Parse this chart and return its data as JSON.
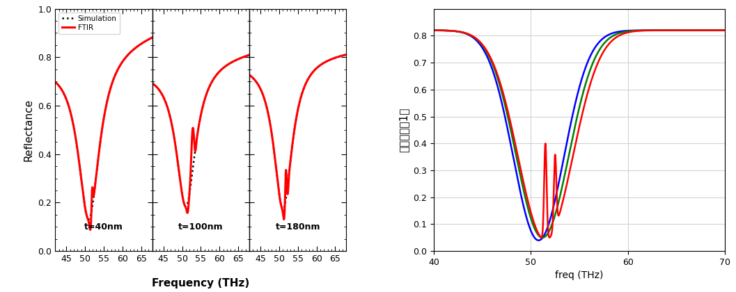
{
  "left_panel": {
    "ylabel": "Reflectance",
    "xlabel": "Frequency (THz)",
    "ylim": [
      0.0,
      1.0
    ],
    "yticks": [
      0.0,
      0.2,
      0.4,
      0.6,
      0.8,
      1.0
    ],
    "xticks_each": [
      45,
      50,
      55,
      60,
      65
    ],
    "panel_labels": [
      "t=40nm",
      "t=100nm",
      "t=180nm"
    ],
    "legend": [
      "Simulation",
      "FTIR"
    ],
    "sim_color": "black",
    "ftir_color": "red",
    "xmin": 42,
    "xmax": 68
  },
  "right_panel": {
    "ylabel": "总反射率（1）",
    "xlabel": "freq (THz)",
    "xlim": [
      40,
      70
    ],
    "ylim": [
      0,
      0.9
    ],
    "yticks": [
      0,
      0.1,
      0.2,
      0.3,
      0.4,
      0.5,
      0.6,
      0.7,
      0.8
    ],
    "xticks": [
      40,
      50,
      60,
      70
    ],
    "grid": true,
    "line_colors": [
      "blue",
      "green",
      "red"
    ]
  }
}
